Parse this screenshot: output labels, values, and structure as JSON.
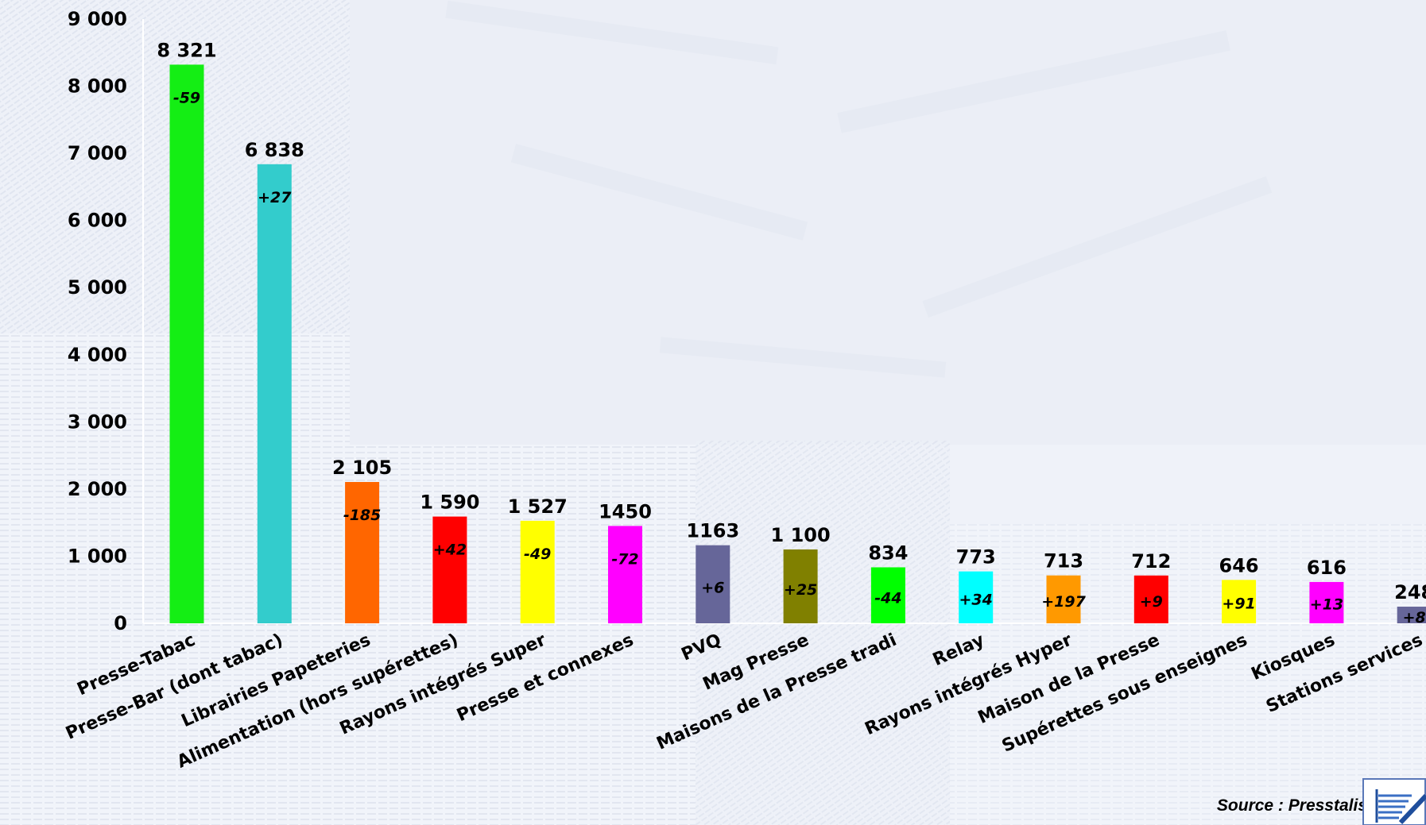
{
  "chart_data": {
    "type": "bar",
    "title": "",
    "xlabel": "",
    "ylabel": "",
    "ylim": [
      0,
      9000
    ],
    "yticks": [
      "0",
      "1 000",
      "2 000",
      "3 000",
      "4 000",
      "5 000",
      "6 000",
      "7 000",
      "8 000",
      "9 000"
    ],
    "grid": false,
    "legend": "none",
    "categories": [
      "Presse-Tabac",
      "Presse-Bar (dont tabac)",
      "Librairies Papeteries",
      "Alimentation (hors supérettes)",
      "Rayons intégrés Super",
      "Presse et connexes",
      "PVQ",
      "Mag Presse",
      "Maisons de la Presse tradi",
      "Relay",
      "Rayons intégrés Hyper",
      "Maison de la Presse",
      "Supérettes sous enseignes",
      "Kiosques",
      "Stations services"
    ],
    "values": [
      8321,
      6838,
      2105,
      1590,
      1527,
      1450,
      1163,
      1100,
      834,
      773,
      713,
      712,
      646,
      616,
      248
    ],
    "value_labels": [
      "8 321",
      "6 838",
      "2 105",
      "1 590",
      "1 527",
      "1450",
      "1163",
      "1 100",
      "834",
      "773",
      "713",
      "712",
      "646",
      "616",
      "248"
    ],
    "change_labels": [
      "-59",
      "+27",
      "-185",
      "+42",
      "-49",
      "-72",
      "+6",
      "+25",
      "-44",
      "+34",
      "+197",
      "+9",
      "+91",
      "+13",
      "+8"
    ],
    "colors": [
      "#14ee14",
      "#33cccc",
      "#ff6600",
      "#ff0000",
      "#ffff00",
      "#ff00ff",
      "#666699",
      "#808000",
      "#00ff00",
      "#00ffff",
      "#ff9900",
      "#ff0000",
      "#ffff00",
      "#ff00ff",
      "#666699"
    ]
  },
  "source": "Source : Presstalis",
  "logo": "presstalis-logo-icon"
}
